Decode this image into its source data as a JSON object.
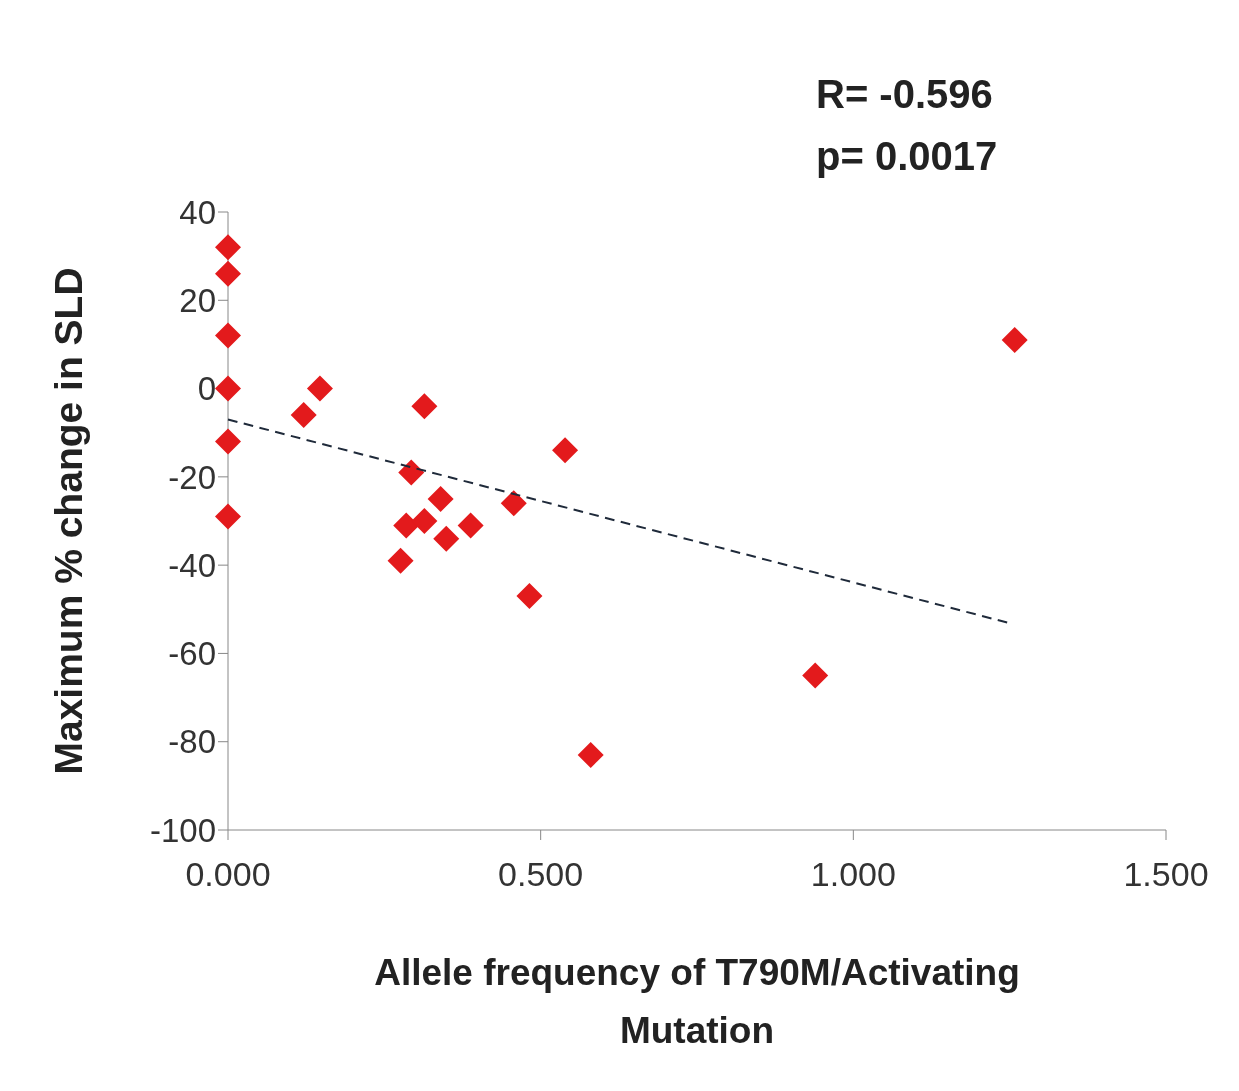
{
  "chart_data": {
    "type": "scatter",
    "xlabel": "Allele frequency of T790M/Activating Mutation",
    "ylabel": "Maximum % change in SLD",
    "annotations": [
      "R= -0.596",
      "p= 0.0017"
    ],
    "marker": "diamond",
    "grid": false,
    "legend": false,
    "xlim": [
      0,
      1.5
    ],
    "xticks": [
      {
        "value": 0,
        "label": "0.000"
      },
      {
        "value": 0.5,
        "label": "0.500"
      },
      {
        "value": 1,
        "label": "1.000"
      },
      {
        "value": 1.5,
        "label": "1.500"
      }
    ],
    "ylim": [
      -100,
      40
    ],
    "yticks": [
      -100,
      -80,
      -60,
      -40,
      -20,
      0,
      20,
      40
    ],
    "series": [
      {
        "type": "scatter",
        "color": "#e31a1c",
        "x": [
          0,
          0,
          0,
          0,
          0,
          0,
          0.147,
          0.121,
          0.314,
          0.539,
          0.293,
          0.34,
          0.457,
          0.285,
          0.314,
          0.349,
          0.388,
          0.276,
          0.482,
          0.58,
          0.939,
          1.258
        ],
        "values": [
          32,
          26,
          12,
          0,
          -12,
          -29,
          0,
          -6,
          -4,
          -14,
          -19,
          -25,
          -26,
          -31,
          -30,
          -34,
          -31,
          -39,
          -47,
          -83,
          -65,
          11
        ]
      },
      {
        "type": "line",
        "color": "#1f2a3a",
        "line_style": "dashed",
        "marker": "none",
        "x": [
          0,
          1.246
        ],
        "values": [
          -7,
          -53
        ]
      }
    ]
  }
}
